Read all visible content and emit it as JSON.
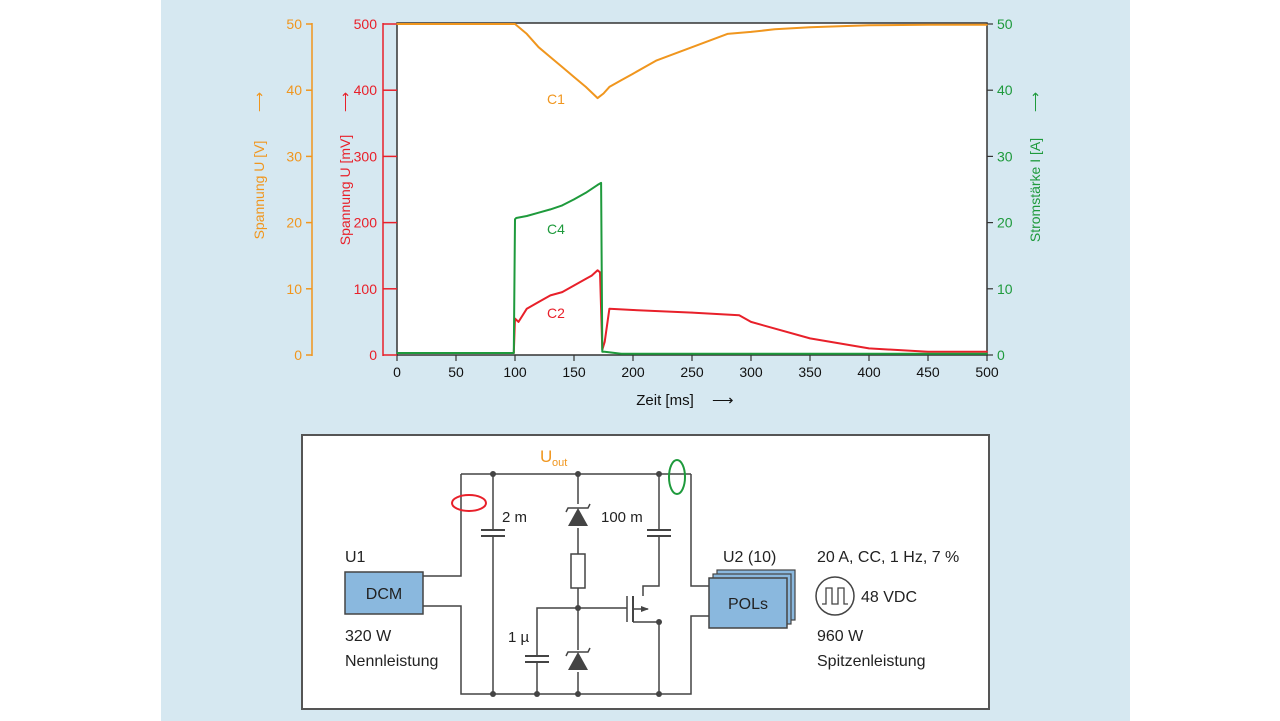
{
  "chart_data": {
    "type": "line",
    "xlabel": "Zeit [ms]",
    "xlim": [
      0,
      500
    ],
    "xticks": [
      0,
      50,
      100,
      150,
      200,
      250,
      300,
      350,
      400,
      450,
      500
    ],
    "y_axes": [
      {
        "id": "uV",
        "label": "Spannung U [V]",
        "ylim": [
          0,
          50
        ],
        "ticks": [
          0,
          10,
          20,
          30,
          40,
          50
        ],
        "color": "#f0961e"
      },
      {
        "id": "umV",
        "label": "Spannung U [mV]",
        "ylim": [
          0,
          500
        ],
        "ticks": [
          0,
          100,
          200,
          300,
          400,
          500
        ],
        "color": "#e8202a"
      },
      {
        "id": "iA",
        "label": "Stromstärke I [A]",
        "ylim": [
          0,
          50
        ],
        "ticks": [
          0,
          10,
          20,
          30,
          40,
          50
        ],
        "color": "#1e9a3c"
      }
    ],
    "grid": false,
    "series": [
      {
        "name": "C1",
        "axis": "uV",
        "color": "#f0961e",
        "x": [
          0,
          100,
          110,
          120,
          130,
          140,
          150,
          160,
          170,
          175,
          180,
          190,
          200,
          220,
          250,
          280,
          300,
          320,
          350,
          400,
          450,
          500
        ],
        "y": [
          50,
          50,
          48.5,
          46.5,
          45,
          43.5,
          42,
          40.5,
          38.8,
          39.5,
          40.5,
          41.5,
          42.5,
          44.5,
          46.5,
          48.5,
          48.8,
          49.2,
          49.5,
          49.8,
          49.9,
          49.9
        ]
      },
      {
        "name": "C2",
        "axis": "umV",
        "color": "#e8202a",
        "x": [
          0,
          99,
          100,
          103,
          110,
          120,
          130,
          140,
          150,
          160,
          165,
          170,
          172,
          174,
          176,
          180,
          200,
          250,
          290,
          300,
          350,
          400,
          450,
          500
        ],
        "y": [
          3,
          3,
          55,
          50,
          70,
          80,
          90,
          95,
          105,
          115,
          120,
          128,
          125,
          8,
          20,
          70,
          68,
          64,
          60,
          50,
          25,
          10,
          5,
          5
        ]
      },
      {
        "name": "C4",
        "axis": "iA",
        "color": "#1e9a3c",
        "x": [
          0,
          99,
          100,
          101,
          110,
          120,
          130,
          140,
          150,
          160,
          170,
          173,
          174,
          176,
          190,
          250,
          300,
          350,
          400,
          450,
          500
        ],
        "y": [
          0.3,
          0.3,
          20.5,
          20.7,
          21,
          21.5,
          22,
          22.6,
          23.5,
          24.5,
          25.7,
          26,
          0.5,
          0.5,
          0.2,
          0.2,
          0.2,
          0.2,
          0.2,
          0.2,
          0.2
        ]
      }
    ]
  },
  "circuit": {
    "uout_main": "U",
    "uout_sub": "out",
    "cap1": "2 m",
    "cap2": "100 m",
    "cap3": "1 µ",
    "u1_label": "U1",
    "dcm_label": "DCM",
    "dcm_power": "320 W",
    "dcm_power_desc": "Nennleistung",
    "u2_label": "U2 (10)",
    "pols_label": "POLs",
    "load_spec": "20 A, CC, 1 Hz, 7 %",
    "load_voltage": "48 VDC",
    "peak_power": "960 W",
    "peak_power_desc": "Spitzenleistung"
  },
  "colors": {
    "panel_bg": "#d6e8f1",
    "box_fill": "#8ab8de",
    "wire": "#444444"
  }
}
